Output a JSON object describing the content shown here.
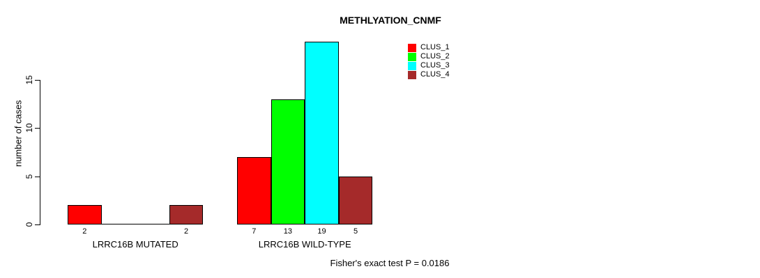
{
  "chart_data": {
    "type": "bar",
    "title": "METHLYATION_CNMF",
    "xlabel": "",
    "ylabel": "number of cases",
    "categories": [
      "LRRC16B MUTATED",
      "LRRC16B WILD-TYPE"
    ],
    "series": [
      {
        "name": "CLUS_1",
        "color": "#FF0000",
        "values": [
          2,
          7
        ]
      },
      {
        "name": "CLUS_2",
        "color": "#00FF00",
        "values": [
          0,
          13
        ]
      },
      {
        "name": "CLUS_3",
        "color": "#00FFFF",
        "values": [
          0,
          19
        ]
      },
      {
        "name": "CLUS_4",
        "color": "#A52A2A",
        "values": [
          2,
          5
        ]
      }
    ],
    "yticks": [
      "0",
      "5",
      "10",
      "15"
    ],
    "ylim": [
      0,
      19
    ],
    "grid": false,
    "value_labels": "shown under each nonzero bar",
    "legend": {
      "position": "top-right",
      "entries": [
        {
          "label": "CLUS_1",
          "color": "#FF0000"
        },
        {
          "label": "CLUS_2",
          "color": "#00FF00"
        },
        {
          "label": "CLUS_3",
          "color": "#00FFFF"
        },
        {
          "label": "CLUS_4",
          "color": "#A52A2A"
        }
      ]
    },
    "annotation": "Fisher's exact test P = 0.0186"
  }
}
